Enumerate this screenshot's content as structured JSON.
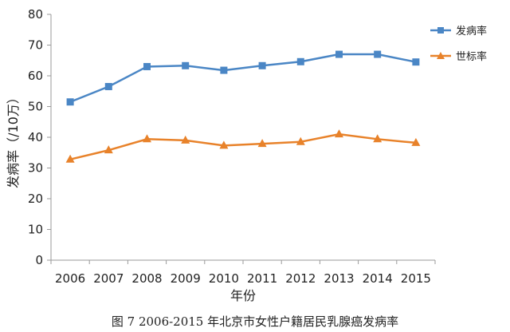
{
  "chart_data": {
    "type": "line",
    "categories": [
      "2006",
      "2007",
      "2008",
      "2009",
      "2010",
      "2011",
      "2012",
      "2013",
      "2014",
      "2015"
    ],
    "series": [
      {
        "name": "发病率",
        "values": [
          51.5,
          56.5,
          63.0,
          63.3,
          61.8,
          63.3,
          64.6,
          67.0,
          67.0,
          64.5
        ],
        "color": "#4a86c5",
        "marker": "square"
      },
      {
        "name": "世标率",
        "values": [
          32.8,
          35.8,
          39.4,
          39.0,
          37.3,
          37.9,
          38.5,
          41.0,
          39.4,
          38.2
        ],
        "color": "#e8822a",
        "marker": "triangle"
      }
    ],
    "ylim": [
      0,
      80
    ],
    "yticks": [
      0,
      10,
      20,
      30,
      40,
      50,
      60,
      70,
      80
    ],
    "xlabel": "年份",
    "ylabel": "发病率（/10万）",
    "grid": false,
    "legend": "top-right"
  },
  "caption": "图 7    2006-2015 年北京市女性户籍居民乳腺癌发病率",
  "colors": {
    "axis": "#9a9a9a",
    "text": "#222222"
  }
}
